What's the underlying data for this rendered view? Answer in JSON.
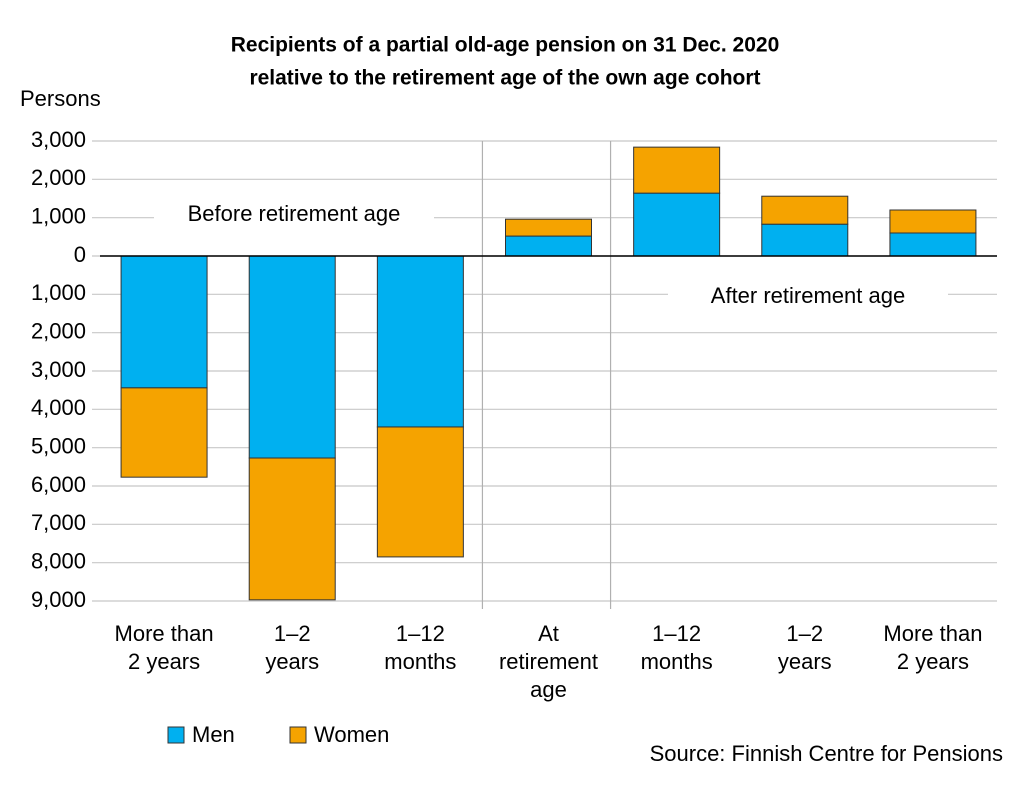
{
  "chart_data": {
    "type": "stacked-bar",
    "title": [
      "Recipients of a partial old-age pension on 31 Dec. 2020",
      "relative to the retirement age of the own age cohort"
    ],
    "y_label": "Persons",
    "annotations": [
      "Before retirement age",
      "After retirement age"
    ],
    "source": "Source: Finnish Centre for Pensions",
    "categories": [
      [
        "More than",
        "2 years"
      ],
      [
        "1–2",
        "years"
      ],
      [
        "1–12",
        "months"
      ],
      [
        "At",
        "retirement",
        "age"
      ],
      [
        "1–12",
        "months"
      ],
      [
        "1–2",
        "years"
      ],
      [
        "More than",
        "2 years"
      ]
    ],
    "series": [
      {
        "name": "Men",
        "color": "#00b0f0",
        "values": [
          -3440,
          -5270,
          -4460,
          520,
          1640,
          830,
          600
        ]
      },
      {
        "name": "Women",
        "color": "#f5a300",
        "values": [
          -2330,
          -3700,
          -3390,
          440,
          1200,
          730,
          600
        ]
      }
    ],
    "ylim": [
      -9000,
      3000
    ],
    "yticks": [
      {
        "value": -9000,
        "label": "9,000"
      },
      {
        "value": -8000,
        "label": "8,000"
      },
      {
        "value": -7000,
        "label": "7,000"
      },
      {
        "value": -6000,
        "label": "6,000"
      },
      {
        "value": -5000,
        "label": "5,000"
      },
      {
        "value": -4000,
        "label": "4,000"
      },
      {
        "value": -3000,
        "label": "3,000"
      },
      {
        "value": -2000,
        "label": "2,000"
      },
      {
        "value": -1000,
        "label": "1,000"
      },
      0,
      {
        "value": 1000,
        "label": "1,000"
      },
      {
        "value": 2000,
        "label": "2,000"
      },
      {
        "value": 3000,
        "label": "3,000"
      }
    ],
    "grid": true
  }
}
